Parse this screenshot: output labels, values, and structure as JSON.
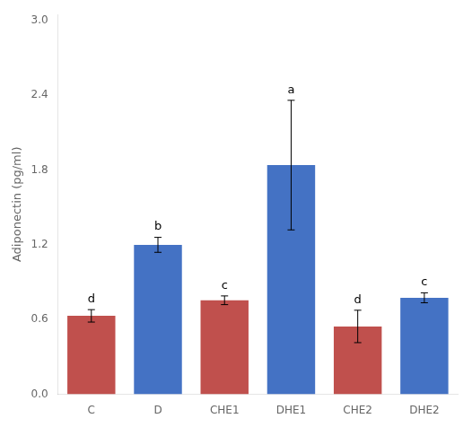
{
  "chart_data": {
    "type": "bar",
    "ylabel": "Adiponectin (pg/ml)",
    "categories": [
      "C",
      "D",
      "CHE1",
      "DHE1",
      "CHE2",
      "DHE2"
    ],
    "values": [
      0.63,
      1.2,
      0.755,
      1.84,
      0.545,
      0.775
    ],
    "errors": [
      0.05,
      0.06,
      0.035,
      0.52,
      0.13,
      0.04
    ],
    "colors": [
      "#C0504D",
      "#4472C4",
      "#C0504D",
      "#4472C4",
      "#C0504D",
      "#4472C4"
    ],
    "annotations": [
      "d",
      "b",
      "c",
      "a",
      "d",
      "c"
    ],
    "ylim": [
      0,
      3.05
    ],
    "yticks": [
      {
        "value": 0,
        "label": "0.0"
      },
      0.6,
      1.2,
      1.8,
      2.4,
      {
        "value": 3,
        "label": "3.0"
      }
    ],
    "grid": false
  }
}
